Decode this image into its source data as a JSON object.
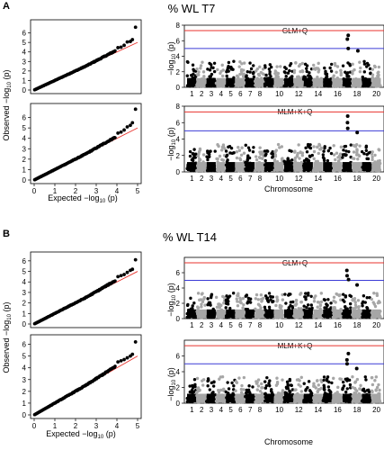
{
  "panels": [
    {
      "letter": "A",
      "title": "% WL T7",
      "qq_ylabel": "Observed −log",
      "qq_xlabel": "Expected −log",
      "log_sub": "10",
      "log_p": " (p)",
      "manhattan_ylabel": "−log",
      "manhattan_xlabel": "Chromosome"
    },
    {
      "letter": "B",
      "title": "% WL T14",
      "qq_ylabel": "Observed −log",
      "qq_xlabel": "Expected −log",
      "log_sub": "10",
      "log_p": " (p)",
      "manhattan_ylabel": "−log",
      "manhattan_xlabel": "Chromosome"
    }
  ],
  "chart_data": [
    {
      "type": "scatter",
      "kind": "qq",
      "panel": "A",
      "model": "GLM+Q",
      "xlim": [
        0,
        5
      ],
      "ylim": [
        0,
        7
      ],
      "xticks": [
        0,
        1,
        2,
        3,
        4,
        5
      ],
      "yticks": [
        0,
        1,
        2,
        3,
        4,
        5,
        6
      ],
      "reference_line_color": "#e8332d",
      "top_points": [
        [
          4.05,
          4.45
        ],
        [
          4.2,
          4.5
        ],
        [
          4.35,
          4.7
        ],
        [
          4.5,
          5.05
        ],
        [
          4.65,
          5.1
        ],
        [
          4.75,
          5.3
        ],
        [
          4.9,
          6.6
        ]
      ]
    },
    {
      "type": "scatter",
      "kind": "qq",
      "panel": "A",
      "model": "MLM+K+Q",
      "xlim": [
        0,
        5
      ],
      "ylim": [
        0,
        7
      ],
      "xticks": [
        0,
        1,
        2,
        3,
        4,
        5
      ],
      "yticks": [
        0,
        1,
        2,
        3,
        4,
        5,
        6
      ],
      "reference_line_color": "#e8332d",
      "top_points": [
        [
          4.05,
          4.5
        ],
        [
          4.2,
          4.6
        ],
        [
          4.35,
          4.8
        ],
        [
          4.5,
          5.1
        ],
        [
          4.65,
          5.25
        ],
        [
          4.75,
          5.5
        ],
        [
          4.9,
          6.8
        ]
      ]
    },
    {
      "type": "scatter",
      "kind": "manhattan",
      "panel": "A",
      "label": "GLM+Q",
      "ylim": [
        0,
        8
      ],
      "yticks": [
        0,
        2,
        4,
        6,
        8
      ],
      "chromosomes": [
        1,
        2,
        3,
        4,
        5,
        6,
        7,
        8,
        9,
        10,
        11,
        12,
        13,
        14,
        15,
        16,
        17,
        18,
        19,
        20
      ],
      "thresholds": [
        {
          "y": 7.3,
          "color": "#e8332d"
        },
        {
          "y": 5.0,
          "color": "#3b3bd6"
        }
      ],
      "colors": [
        "#000000",
        "#a6a6a6"
      ],
      "peaks": [
        {
          "chr": 17,
          "y": 6.7
        },
        {
          "chr": 17,
          "y": 6.2
        },
        {
          "chr": 17,
          "y": 5.0
        },
        {
          "chr": 18,
          "y": 4.7
        }
      ]
    },
    {
      "type": "scatter",
      "kind": "manhattan",
      "panel": "A",
      "label": "MLM+K+Q",
      "ylim": [
        0,
        8
      ],
      "yticks": [
        0,
        2,
        4,
        6,
        8
      ],
      "chromosomes": [
        1,
        2,
        3,
        4,
        5,
        6,
        7,
        8,
        9,
        10,
        11,
        12,
        13,
        14,
        15,
        16,
        17,
        18,
        19,
        20
      ],
      "thresholds": [
        {
          "y": 7.3,
          "color": "#e8332d"
        },
        {
          "y": 5.0,
          "color": "#3b3bd6"
        }
      ],
      "colors": [
        "#000000",
        "#a6a6a6"
      ],
      "peaks": [
        {
          "chr": 17,
          "y": 6.8
        },
        {
          "chr": 17,
          "y": 6.0
        },
        {
          "chr": 17,
          "y": 5.3
        },
        {
          "chr": 18,
          "y": 4.8
        }
      ]
    },
    {
      "type": "scatter",
      "kind": "qq",
      "panel": "B",
      "model": "GLM+Q",
      "xlim": [
        0,
        5
      ],
      "ylim": [
        0,
        6.5
      ],
      "xticks": [
        0,
        1,
        2,
        3,
        4,
        5
      ],
      "yticks": [
        0,
        1,
        2,
        3,
        4,
        5,
        6
      ],
      "reference_line_color": "#e8332d",
      "top_points": [
        [
          4.05,
          4.5
        ],
        [
          4.2,
          4.6
        ],
        [
          4.35,
          4.7
        ],
        [
          4.5,
          4.9
        ],
        [
          4.65,
          5.1
        ],
        [
          4.75,
          5.2
        ],
        [
          4.9,
          6.1
        ]
      ]
    },
    {
      "type": "scatter",
      "kind": "qq",
      "panel": "B",
      "model": "MLM+K+Q",
      "xlim": [
        0,
        5
      ],
      "ylim": [
        0,
        6.5
      ],
      "xticks": [
        0,
        1,
        2,
        3,
        4,
        5
      ],
      "yticks": [
        0,
        1,
        2,
        3,
        4,
        5,
        6
      ],
      "reference_line_color": "#e8332d",
      "top_points": [
        [
          4.05,
          4.5
        ],
        [
          4.2,
          4.6
        ],
        [
          4.35,
          4.7
        ],
        [
          4.5,
          4.85
        ],
        [
          4.65,
          5.0
        ],
        [
          4.75,
          5.15
        ],
        [
          4.9,
          6.2
        ]
      ]
    },
    {
      "type": "scatter",
      "kind": "manhattan",
      "panel": "B",
      "label": "GLM+Q",
      "ylim": [
        0,
        8
      ],
      "yticks": [
        0,
        2,
        4,
        6
      ],
      "chromosomes": [
        1,
        2,
        3,
        4,
        5,
        6,
        7,
        8,
        9,
        10,
        11,
        12,
        13,
        14,
        15,
        16,
        17,
        18,
        19,
        20
      ],
      "thresholds": [
        {
          "y": 7.3,
          "color": "#e8332d"
        },
        {
          "y": 5.0,
          "color": "#3b3bd6"
        }
      ],
      "colors": [
        "#000000",
        "#a6a6a6"
      ],
      "peaks": [
        {
          "chr": 17,
          "y": 6.3
        },
        {
          "chr": 17,
          "y": 5.6
        },
        {
          "chr": 17,
          "y": 5.1
        },
        {
          "chr": 18,
          "y": 4.4
        }
      ]
    },
    {
      "type": "scatter",
      "kind": "manhattan",
      "panel": "B",
      "label": "MLM+K+Q",
      "ylim": [
        0,
        8
      ],
      "yticks": [
        0,
        2,
        4,
        6
      ],
      "chromosomes": [
        1,
        2,
        3,
        4,
        5,
        6,
        7,
        8,
        9,
        10,
        11,
        12,
        13,
        14,
        15,
        16,
        17,
        18,
        19,
        20
      ],
      "thresholds": [
        {
          "y": 7.3,
          "color": "#e8332d"
        },
        {
          "y": 5.0,
          "color": "#3b3bd6"
        }
      ],
      "colors": [
        "#000000",
        "#a6a6a6"
      ],
      "peaks": [
        {
          "chr": 17,
          "y": 6.3
        },
        {
          "chr": 17,
          "y": 5.5
        },
        {
          "chr": 17,
          "y": 5.0
        },
        {
          "chr": 18,
          "y": 4.4
        }
      ]
    }
  ]
}
